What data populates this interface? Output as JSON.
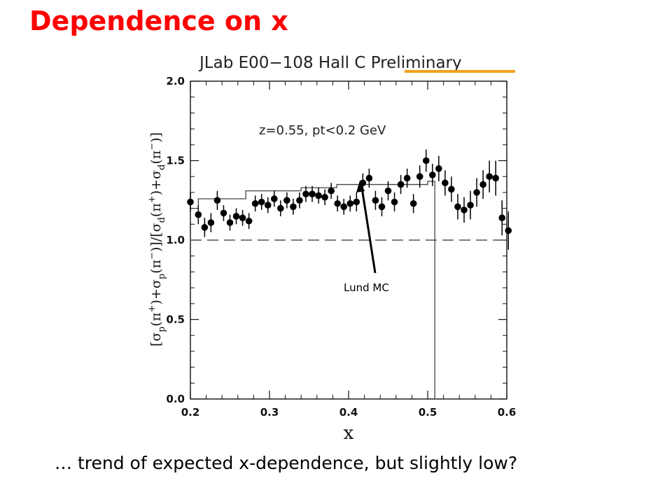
{
  "slide": {
    "title": "Dependence on x",
    "caption": "… trend of expected x-dependence, but slightly low?",
    "title_color": "#ff0000",
    "underline_color": "#f5a020"
  },
  "chart_data": {
    "type": "scatter",
    "header": "JLab E00−108 Hall C Preliminary",
    "header_highlight": "Preliminary",
    "annotation": "z=0.55, pt<0.2 GeV",
    "callout": "Lund MC",
    "xlabel": "x",
    "ylabel": "[σp(π+)+σp(π−)]/[σd(π+)+σd(π−)]",
    "xlim": [
      0.2,
      0.6
    ],
    "ylim": [
      0.0,
      2.0
    ],
    "xticks": [
      "0.2",
      "0.3",
      "0.4",
      "0.5",
      "0.6"
    ],
    "yticks": [
      "0.0",
      "0.5",
      "1.0",
      "1.5",
      "2.0"
    ],
    "reference_line": 1.0,
    "series": [
      {
        "marker": "filled-circle",
        "x": [
          0.2,
          0.21,
          0.218,
          0.226,
          0.234,
          0.242,
          0.25,
          0.258,
          0.266,
          0.274,
          0.282,
          0.29,
          0.298,
          0.306,
          0.314,
          0.322,
          0.33,
          0.338,
          0.346,
          0.354,
          0.362,
          0.37,
          0.378,
          0.386,
          0.394,
          0.402,
          0.41,
          0.418,
          0.426,
          0.434,
          0.442,
          0.45,
          0.458,
          0.466,
          0.474,
          0.482,
          0.49,
          0.498,
          0.506,
          0.514,
          0.522,
          0.53,
          0.538,
          0.546,
          0.554,
          0.562,
          0.57,
          0.578,
          0.586,
          0.594,
          0.602
        ],
        "y": [
          1.24,
          1.16,
          1.08,
          1.11,
          1.25,
          1.17,
          1.11,
          1.15,
          1.14,
          1.12,
          1.23,
          1.24,
          1.22,
          1.26,
          1.2,
          1.25,
          1.21,
          1.25,
          1.29,
          1.29,
          1.28,
          1.27,
          1.31,
          1.23,
          1.21,
          1.23,
          1.24,
          1.36,
          1.39,
          1.25,
          1.21,
          1.31,
          1.24,
          1.35,
          1.39,
          1.23,
          1.4,
          1.5,
          1.41,
          1.45,
          1.36,
          1.32,
          1.21,
          1.19,
          1.22,
          1.3,
          1.35,
          1.4,
          1.39,
          1.14,
          1.06
        ],
        "yerr": [
          0.06,
          0.06,
          0.06,
          0.06,
          0.06,
          0.05,
          0.05,
          0.05,
          0.05,
          0.05,
          0.05,
          0.05,
          0.05,
          0.05,
          0.05,
          0.05,
          0.05,
          0.05,
          0.05,
          0.05,
          0.05,
          0.05,
          0.05,
          0.05,
          0.05,
          0.05,
          0.06,
          0.06,
          0.06,
          0.06,
          0.06,
          0.06,
          0.06,
          0.06,
          0.06,
          0.06,
          0.07,
          0.07,
          0.07,
          0.08,
          0.08,
          0.08,
          0.08,
          0.08,
          0.09,
          0.09,
          0.09,
          0.1,
          0.11,
          0.11,
          0.12
        ]
      },
      {
        "name": "Lund MC",
        "type": "step",
        "edges": [
          0.2,
          0.21,
          0.27,
          0.34,
          0.385,
          0.5,
          0.509
        ],
        "values": [
          1.2,
          1.26,
          1.31,
          1.33,
          1.35,
          1.37
        ],
        "drop_x": 0.509,
        "drop_to": 0.0
      }
    ]
  }
}
